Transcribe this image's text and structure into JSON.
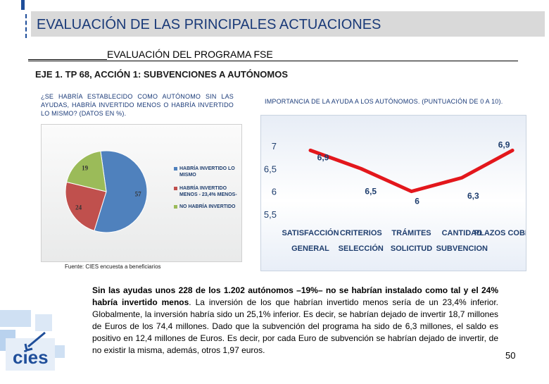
{
  "header": {
    "title": "EVALUACIÓN DE LAS PRINCIPALES ACTUACIONES",
    "program_title": "EVALUACIÓN DEL PROGRAMA FSE",
    "axis_title": "EJE 1. TP 68, ACCIÓN 1: SUBVENCIONES A AUTÓNOMOS"
  },
  "left_panel": {
    "question": "¿SE HABRÍA ESTABLECIDO COMO AUTÓNOMO SIN LAS AYUDAS, HABRÍA INVERTIDO MENOS O HABRÍA INVERTIDO LO MISMO? (DATOS EN %).",
    "source": "Fuente: CIES encuesta a beneficiarios"
  },
  "right_panel": {
    "question": "IMPORTANCIA DE LA AYUDA A LOS AUTÓNOMOS. (PUNTUACIÓN DE 0 A 10)."
  },
  "chart_data": [
    {
      "type": "pie",
      "title": "¿SE HABRÍA ESTABLECIDO COMO AUTÓNOMO SIN LAS AYUDAS, HABRÍA INVERTIDO MENOS O HABRÍA INVERTIDO LO MISMO? (DATOS EN %).",
      "categories": [
        "HABRÍA INVERTIDO LO MISMO",
        "HABRÍA INVERTIDO MENOS - 23,4% MENOS-",
        "NO HABRÍA INVERTIDO"
      ],
      "values": [
        57,
        24,
        19
      ],
      "data_labels": [
        "57",
        "24",
        "19"
      ],
      "colors": [
        "#4f81bd",
        "#c0504d",
        "#9bbb59"
      ],
      "legend": "right"
    },
    {
      "type": "line",
      "title": "IMPORTANCIA DE LA AYUDA A LOS AUTÓNOMOS. (PUNTUACIÓN DE 0 A 10).",
      "categories": [
        "SATISFACCIÓN GENERAL",
        "CRITERIOS SELECCIÓN",
        "TRÁMITES SOLICITUD",
        "CANTIDAD SUBVENCION",
        "PLAZOS COBRO"
      ],
      "category_lines": [
        [
          "SATISFACCIÓN",
          "GENERAL"
        ],
        [
          "CRITERIOS",
          "SELECCIÓN"
        ],
        [
          "TRÁMITES",
          "SOLICITUD"
        ],
        [
          "CANTIDAD",
          "SUBVENCION"
        ],
        [
          "PLAZOS COBRO",
          ""
        ]
      ],
      "series": [
        {
          "name": "Puntuación",
          "values": [
            6.9,
            6.5,
            6.0,
            6.3,
            6.9
          ]
        }
      ],
      "data_labels": [
        "6,9",
        "6,5",
        "6",
        "6,3",
        "6,9"
      ],
      "yticks": [
        "7",
        "6,5",
        "6",
        "5,5"
      ],
      "ytick_values": [
        7,
        6.5,
        6,
        5.5
      ],
      "ylim": [
        5.5,
        7.2
      ],
      "line_color": "#e3171c",
      "grid": false
    }
  ],
  "body": {
    "lead_bold": "Sin las ayudas unos 228 de los 1.202 autónomos –19%– no se habrían instalado como tal y el 24% habría invertido menos",
    "rest": ". La inversión de los que habrían invertido menos sería de un 23,4% inferior. Globalmente, la inversión habría sido un 25,1% inferior. Es decir, se habrían dejado de invertir 18,7 millones de Euros de los 74,4 millones. Dado que la subvención del programa ha sido de 6,3 millones, el saldo es positivo en 12,4 millones de Euros. Es decir, por cada Euro de subvención se habrían dejado de invertir, de no existir la misma, además, otros 1,97 euros."
  },
  "footer": {
    "page_number": "50",
    "logo_text": "cies"
  }
}
